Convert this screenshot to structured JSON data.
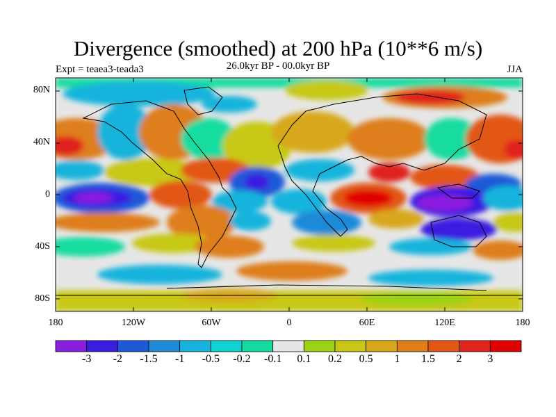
{
  "title": "Divergence (smoothed) at 200 hPa (10**6 m/s)",
  "experiment": "Expt = teaea3-teada3",
  "subtitle": "26.0kyr BP - 00.0kyr BP",
  "season": "JJA",
  "map": {
    "lat_ticks": [
      "80N",
      "40N",
      "0",
      "40S",
      "80S"
    ],
    "lon_ticks": [
      "180",
      "120W",
      "60W",
      "0",
      "60E",
      "120E",
      "180"
    ]
  },
  "colorbar": {
    "labels": [
      "-3",
      "-2",
      "-1.5",
      "-1",
      "-0.5",
      "-0.2",
      "-0.1",
      "0.1",
      "0.2",
      "0.5",
      "1",
      "1.5",
      "2",
      "3"
    ],
    "colors": [
      "#8a1ee0",
      "#3a1ee0",
      "#1e5ad8",
      "#1e8ad8",
      "#16b4dc",
      "#10d2d2",
      "#14dca0",
      "#e6e6e6",
      "#9cd216",
      "#c8c814",
      "#d8a81a",
      "#de7e1a",
      "#e25616",
      "#e0241e",
      "#e00000"
    ]
  }
}
